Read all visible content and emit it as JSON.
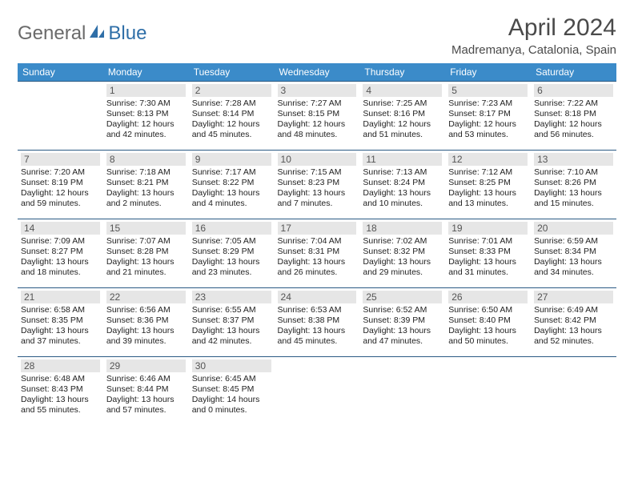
{
  "brand": {
    "name1": "General",
    "name2": "Blue"
  },
  "title": "April 2024",
  "location": "Madremanya, Catalonia, Spain",
  "colors": {
    "header_bg": "#3b8bc9",
    "header_text": "#ffffff",
    "row_border": "#2a5a84",
    "daynum_bg": "#e6e6e6",
    "daynum_text": "#555555",
    "body_text": "#222222",
    "brand_gray": "#6a6a6a",
    "brand_blue": "#2f6fa8"
  },
  "weekdays": [
    "Sunday",
    "Monday",
    "Tuesday",
    "Wednesday",
    "Thursday",
    "Friday",
    "Saturday"
  ],
  "weeks": [
    [
      {
        "n": "",
        "sunrise": "",
        "sunset": "",
        "daylight": ""
      },
      {
        "n": "1",
        "sunrise": "Sunrise: 7:30 AM",
        "sunset": "Sunset: 8:13 PM",
        "daylight": "Daylight: 12 hours and 42 minutes."
      },
      {
        "n": "2",
        "sunrise": "Sunrise: 7:28 AM",
        "sunset": "Sunset: 8:14 PM",
        "daylight": "Daylight: 12 hours and 45 minutes."
      },
      {
        "n": "3",
        "sunrise": "Sunrise: 7:27 AM",
        "sunset": "Sunset: 8:15 PM",
        "daylight": "Daylight: 12 hours and 48 minutes."
      },
      {
        "n": "4",
        "sunrise": "Sunrise: 7:25 AM",
        "sunset": "Sunset: 8:16 PM",
        "daylight": "Daylight: 12 hours and 51 minutes."
      },
      {
        "n": "5",
        "sunrise": "Sunrise: 7:23 AM",
        "sunset": "Sunset: 8:17 PM",
        "daylight": "Daylight: 12 hours and 53 minutes."
      },
      {
        "n": "6",
        "sunrise": "Sunrise: 7:22 AM",
        "sunset": "Sunset: 8:18 PM",
        "daylight": "Daylight: 12 hours and 56 minutes."
      }
    ],
    [
      {
        "n": "7",
        "sunrise": "Sunrise: 7:20 AM",
        "sunset": "Sunset: 8:19 PM",
        "daylight": "Daylight: 12 hours and 59 minutes."
      },
      {
        "n": "8",
        "sunrise": "Sunrise: 7:18 AM",
        "sunset": "Sunset: 8:21 PM",
        "daylight": "Daylight: 13 hours and 2 minutes."
      },
      {
        "n": "9",
        "sunrise": "Sunrise: 7:17 AM",
        "sunset": "Sunset: 8:22 PM",
        "daylight": "Daylight: 13 hours and 4 minutes."
      },
      {
        "n": "10",
        "sunrise": "Sunrise: 7:15 AM",
        "sunset": "Sunset: 8:23 PM",
        "daylight": "Daylight: 13 hours and 7 minutes."
      },
      {
        "n": "11",
        "sunrise": "Sunrise: 7:13 AM",
        "sunset": "Sunset: 8:24 PM",
        "daylight": "Daylight: 13 hours and 10 minutes."
      },
      {
        "n": "12",
        "sunrise": "Sunrise: 7:12 AM",
        "sunset": "Sunset: 8:25 PM",
        "daylight": "Daylight: 13 hours and 13 minutes."
      },
      {
        "n": "13",
        "sunrise": "Sunrise: 7:10 AM",
        "sunset": "Sunset: 8:26 PM",
        "daylight": "Daylight: 13 hours and 15 minutes."
      }
    ],
    [
      {
        "n": "14",
        "sunrise": "Sunrise: 7:09 AM",
        "sunset": "Sunset: 8:27 PM",
        "daylight": "Daylight: 13 hours and 18 minutes."
      },
      {
        "n": "15",
        "sunrise": "Sunrise: 7:07 AM",
        "sunset": "Sunset: 8:28 PM",
        "daylight": "Daylight: 13 hours and 21 minutes."
      },
      {
        "n": "16",
        "sunrise": "Sunrise: 7:05 AM",
        "sunset": "Sunset: 8:29 PM",
        "daylight": "Daylight: 13 hours and 23 minutes."
      },
      {
        "n": "17",
        "sunrise": "Sunrise: 7:04 AM",
        "sunset": "Sunset: 8:31 PM",
        "daylight": "Daylight: 13 hours and 26 minutes."
      },
      {
        "n": "18",
        "sunrise": "Sunrise: 7:02 AM",
        "sunset": "Sunset: 8:32 PM",
        "daylight": "Daylight: 13 hours and 29 minutes."
      },
      {
        "n": "19",
        "sunrise": "Sunrise: 7:01 AM",
        "sunset": "Sunset: 8:33 PM",
        "daylight": "Daylight: 13 hours and 31 minutes."
      },
      {
        "n": "20",
        "sunrise": "Sunrise: 6:59 AM",
        "sunset": "Sunset: 8:34 PM",
        "daylight": "Daylight: 13 hours and 34 minutes."
      }
    ],
    [
      {
        "n": "21",
        "sunrise": "Sunrise: 6:58 AM",
        "sunset": "Sunset: 8:35 PM",
        "daylight": "Daylight: 13 hours and 37 minutes."
      },
      {
        "n": "22",
        "sunrise": "Sunrise: 6:56 AM",
        "sunset": "Sunset: 8:36 PM",
        "daylight": "Daylight: 13 hours and 39 minutes."
      },
      {
        "n": "23",
        "sunrise": "Sunrise: 6:55 AM",
        "sunset": "Sunset: 8:37 PM",
        "daylight": "Daylight: 13 hours and 42 minutes."
      },
      {
        "n": "24",
        "sunrise": "Sunrise: 6:53 AM",
        "sunset": "Sunset: 8:38 PM",
        "daylight": "Daylight: 13 hours and 45 minutes."
      },
      {
        "n": "25",
        "sunrise": "Sunrise: 6:52 AM",
        "sunset": "Sunset: 8:39 PM",
        "daylight": "Daylight: 13 hours and 47 minutes."
      },
      {
        "n": "26",
        "sunrise": "Sunrise: 6:50 AM",
        "sunset": "Sunset: 8:40 PM",
        "daylight": "Daylight: 13 hours and 50 minutes."
      },
      {
        "n": "27",
        "sunrise": "Sunrise: 6:49 AM",
        "sunset": "Sunset: 8:42 PM",
        "daylight": "Daylight: 13 hours and 52 minutes."
      }
    ],
    [
      {
        "n": "28",
        "sunrise": "Sunrise: 6:48 AM",
        "sunset": "Sunset: 8:43 PM",
        "daylight": "Daylight: 13 hours and 55 minutes."
      },
      {
        "n": "29",
        "sunrise": "Sunrise: 6:46 AM",
        "sunset": "Sunset: 8:44 PM",
        "daylight": "Daylight: 13 hours and 57 minutes."
      },
      {
        "n": "30",
        "sunrise": "Sunrise: 6:45 AM",
        "sunset": "Sunset: 8:45 PM",
        "daylight": "Daylight: 14 hours and 0 minutes."
      },
      {
        "n": "",
        "sunrise": "",
        "sunset": "",
        "daylight": ""
      },
      {
        "n": "",
        "sunrise": "",
        "sunset": "",
        "daylight": ""
      },
      {
        "n": "",
        "sunrise": "",
        "sunset": "",
        "daylight": ""
      },
      {
        "n": "",
        "sunrise": "",
        "sunset": "",
        "daylight": ""
      }
    ]
  ]
}
